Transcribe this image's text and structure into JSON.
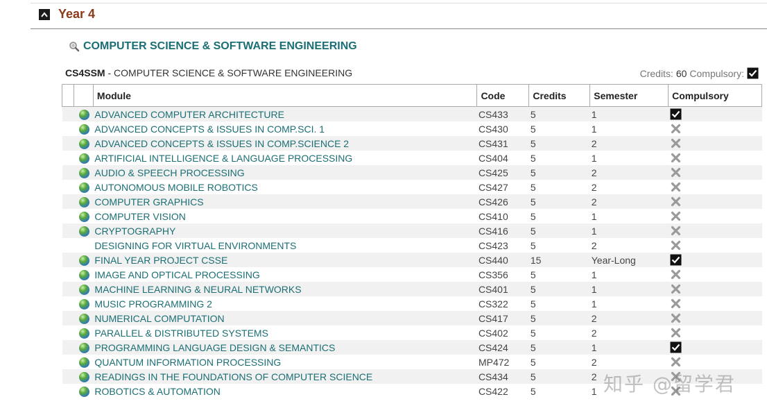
{
  "year_section": {
    "title": "Year 4"
  },
  "programme": {
    "title": "COMPUTER SCIENCE & SOFTWARE ENGINEERING",
    "code": "CS4SSM",
    "separator": " - ",
    "name": "COMPUTER SCIENCE & SOFTWARE ENGINEERING",
    "credits_label": "Credits:",
    "credits_value": "60",
    "compulsory_label": "Compulsory:",
    "compulsory_checked": true
  },
  "table": {
    "headers": {
      "module": "Module",
      "code": "Code",
      "credits": "Credits",
      "semester": "Semester",
      "compulsory": "Compulsory"
    },
    "rows": [
      {
        "name": "ADVANCED COMPUTER ARCHITECTURE",
        "code": "CS433",
        "credits": "5",
        "semester": "1",
        "compulsory": true,
        "globe": true
      },
      {
        "name": "ADVANCED CONCEPTS & ISSUES IN COMP.SCI. 1",
        "code": "CS430",
        "credits": "5",
        "semester": "1",
        "compulsory": false,
        "globe": true
      },
      {
        "name": "ADVANCED CONCEPTS & ISSUES IN COMP.SCIENCE 2",
        "code": "CS431",
        "credits": "5",
        "semester": "2",
        "compulsory": false,
        "globe": true
      },
      {
        "name": "ARTIFICIAL INTELLIGENCE & LANGUAGE PROCESSING",
        "code": "CS404",
        "credits": "5",
        "semester": "1",
        "compulsory": false,
        "globe": true
      },
      {
        "name": "AUDIO & SPEECH PROCESSING",
        "code": "CS425",
        "credits": "5",
        "semester": "2",
        "compulsory": false,
        "globe": true
      },
      {
        "name": "AUTONOMOUS MOBILE ROBOTICS",
        "code": "CS427",
        "credits": "5",
        "semester": "2",
        "compulsory": false,
        "globe": true
      },
      {
        "name": "COMPUTER GRAPHICS",
        "code": "CS426",
        "credits": "5",
        "semester": "2",
        "compulsory": false,
        "globe": true
      },
      {
        "name": "COMPUTER VISION",
        "code": "CS410",
        "credits": "5",
        "semester": "1",
        "compulsory": false,
        "globe": true
      },
      {
        "name": "CRYPTOGRAPHY",
        "code": "CS416",
        "credits": "5",
        "semester": "1",
        "compulsory": false,
        "globe": true
      },
      {
        "name": "DESIGNING FOR VIRTUAL ENVIRONMENTS",
        "code": "CS423",
        "credits": "5",
        "semester": "2",
        "compulsory": false,
        "globe": false
      },
      {
        "name": "FINAL YEAR PROJECT CSSE",
        "code": "CS440",
        "credits": "15",
        "semester": "Year-Long",
        "compulsory": true,
        "globe": true
      },
      {
        "name": "IMAGE AND OPTICAL PROCESSING",
        "code": "CS356",
        "credits": "5",
        "semester": "1",
        "compulsory": false,
        "globe": true
      },
      {
        "name": "MACHINE LEARNING & NEURAL NETWORKS",
        "code": "CS401",
        "credits": "5",
        "semester": "1",
        "compulsory": false,
        "globe": true
      },
      {
        "name": "MUSIC PROGRAMMING 2",
        "code": "CS322",
        "credits": "5",
        "semester": "1",
        "compulsory": false,
        "globe": true
      },
      {
        "name": "NUMERICAL COMPUTATION",
        "code": "CS417",
        "credits": "5",
        "semester": "2",
        "compulsory": false,
        "globe": true
      },
      {
        "name": "PARALLEL & DISTRIBUTED SYSTEMS",
        "code": "CS402",
        "credits": "5",
        "semester": "2",
        "compulsory": false,
        "globe": true
      },
      {
        "name": "PROGRAMMING LANGUAGE DESIGN & SEMANTICS",
        "code": "CS424",
        "credits": "5",
        "semester": "1",
        "compulsory": true,
        "globe": true
      },
      {
        "name": "QUANTUM INFORMATION PROCESSING",
        "code": "MP472",
        "credits": "5",
        "semester": "2",
        "compulsory": false,
        "globe": true
      },
      {
        "name": "READINGS IN THE FOUNDATIONS OF COMPUTER SCIENCE",
        "code": "CS434",
        "credits": "5",
        "semester": "2",
        "compulsory": false,
        "globe": true
      },
      {
        "name": "ROBOTICS & AUTOMATION",
        "code": "CS422",
        "credits": "5",
        "semester": "1",
        "compulsory": false,
        "globe": true
      }
    ]
  },
  "watermark": "知乎 @留学君",
  "colors": {
    "year_title": "#8b3a1a",
    "link": "#1b6f74",
    "row_stripe": "#f1f1f1"
  },
  "icons": {
    "collapse": "chevron-up-icon",
    "programme": "magnifier-icon",
    "module": "globe-icon",
    "compulsory_yes": "checkbox-checked-icon",
    "compulsory_no": "cross-icon"
  }
}
